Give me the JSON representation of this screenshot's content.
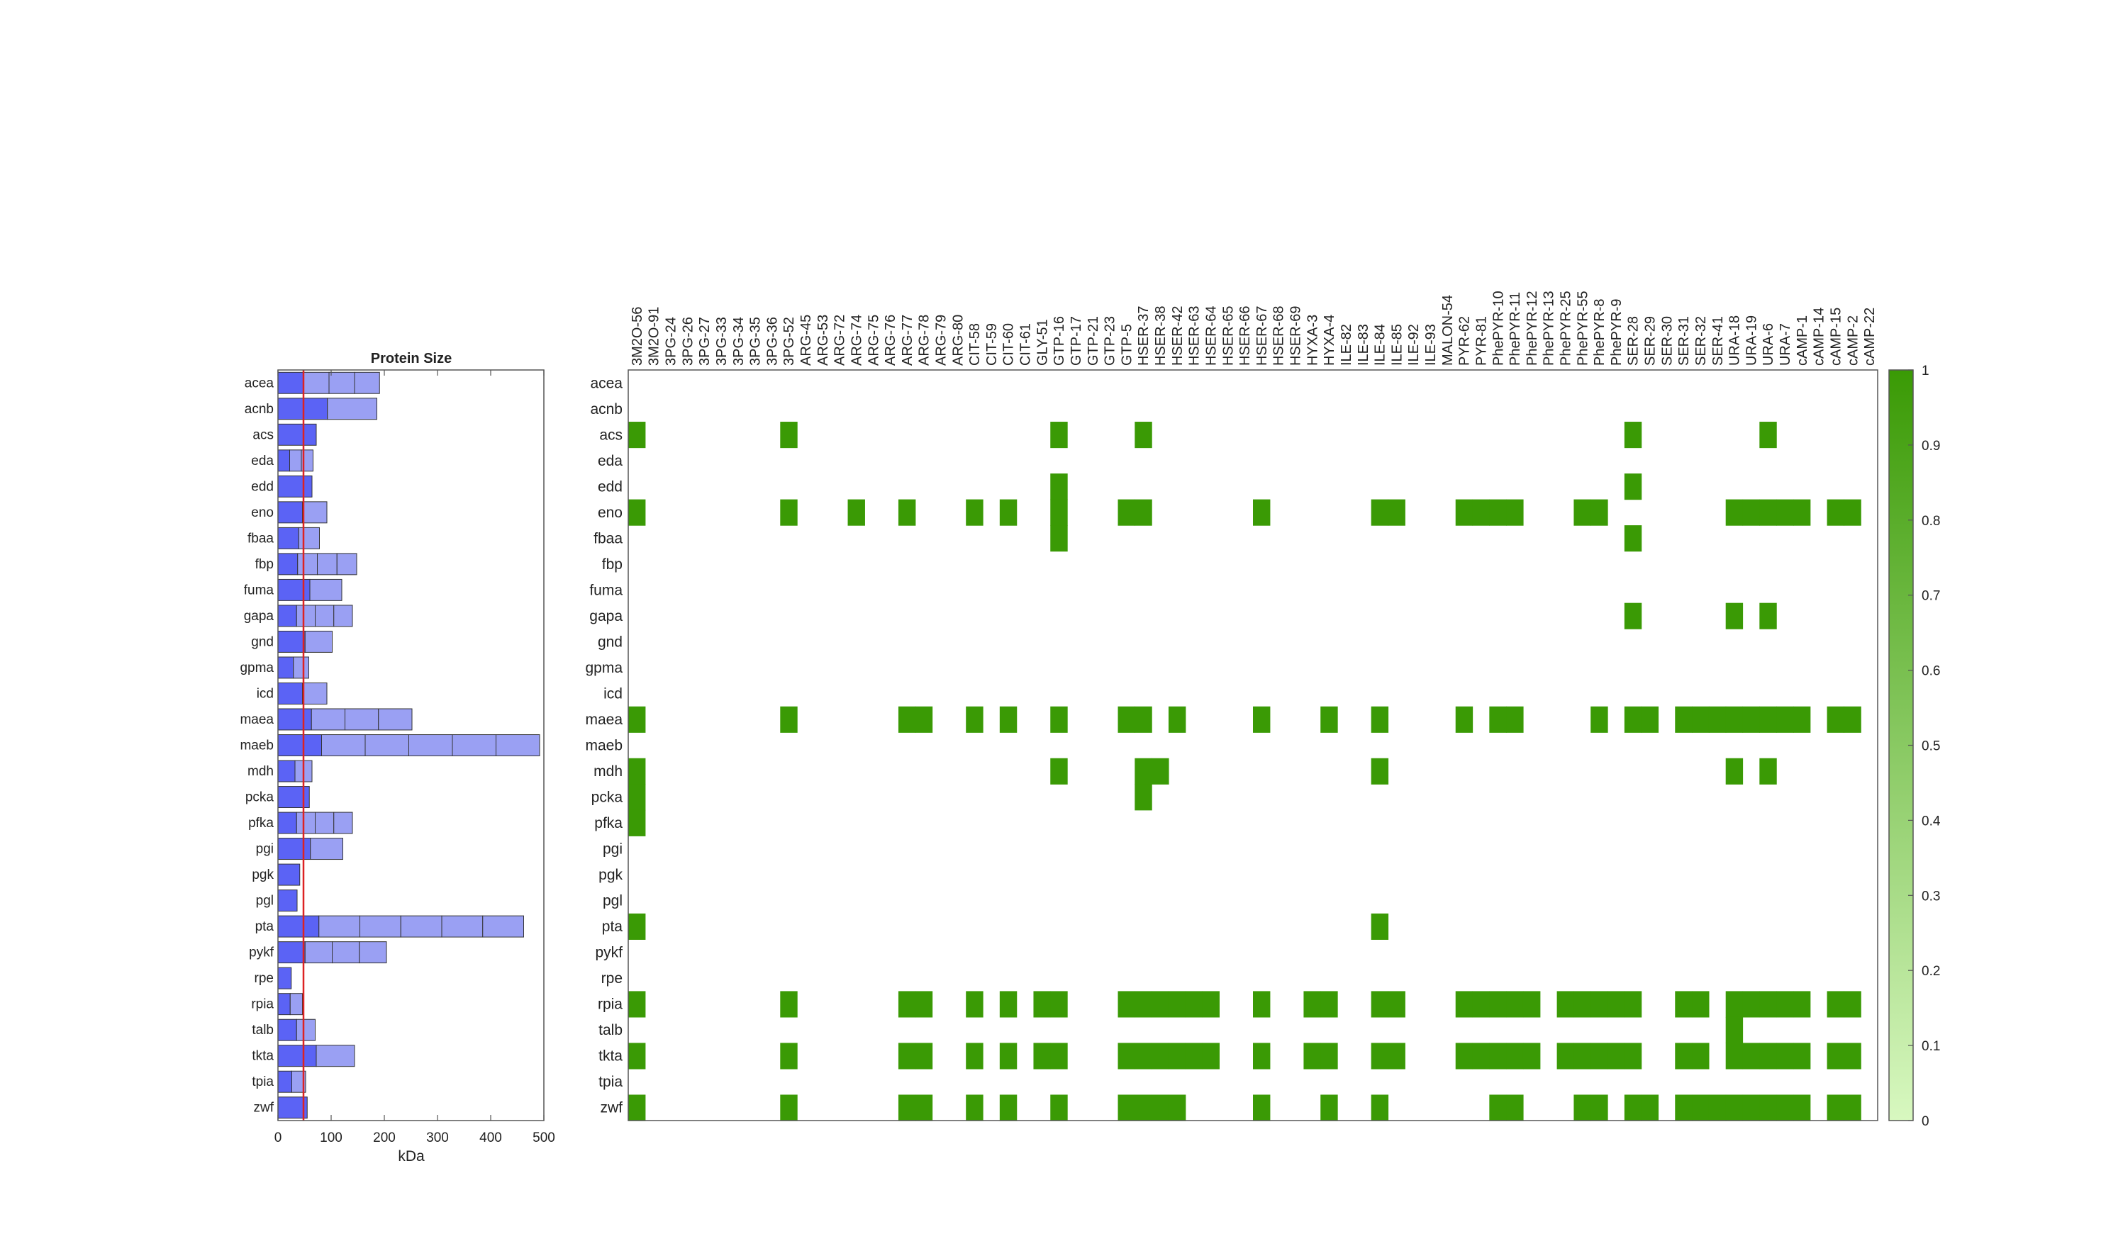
{
  "chart_data": [
    {
      "type": "bar",
      "orientation": "horizontal",
      "stacked": true,
      "title": "Protein Size",
      "xlabel": "kDa",
      "ylabel": "",
      "xlim": [
        0,
        500
      ],
      "xticks": [
        "0",
        "100",
        "200",
        "300",
        "400",
        "500"
      ],
      "reference_line": {
        "x": 48,
        "color": "#dd2222"
      },
      "colors": {
        "primary_segment": "#5b63f5",
        "secondary_segment": "#9aa0f3",
        "edge": "#333333"
      },
      "categories": [
        "acea",
        "acnb",
        "acs",
        "eda",
        "edd",
        "eno",
        "fbaa",
        "fbp",
        "fuma",
        "gapa",
        "gnd",
        "gpma",
        "icd",
        "maea",
        "maeb",
        "mdh",
        "pcka",
        "pfka",
        "pgi",
        "pgk",
        "pgl",
        "pta",
        "pykf",
        "rpe",
        "rpia",
        "talb",
        "tkta",
        "tpia",
        "zwf"
      ],
      "segments": [
        [
          48,
          48,
          48,
          47
        ],
        [
          93,
          93
        ],
        [
          72
        ],
        [
          22,
          22,
          22
        ],
        [
          64
        ],
        [
          46,
          46
        ],
        [
          39,
          39
        ],
        [
          37,
          37,
          37,
          37
        ],
        [
          60,
          60
        ],
        [
          35,
          35,
          35,
          35
        ],
        [
          51,
          51
        ],
        [
          29,
          29
        ],
        [
          46,
          46
        ],
        [
          63,
          63,
          63,
          63
        ],
        [
          82,
          82,
          82,
          82,
          82,
          82
        ],
        [
          32,
          32
        ],
        [
          59
        ],
        [
          35,
          35,
          35,
          35
        ],
        [
          61,
          61
        ],
        [
          41
        ],
        [
          36
        ],
        [
          77,
          77,
          77,
          77,
          77,
          77
        ],
        [
          51,
          51,
          51,
          51
        ],
        [
          25
        ],
        [
          23,
          23
        ],
        [
          35,
          35
        ],
        [
          72,
          72
        ],
        [
          26,
          26
        ],
        [
          55
        ]
      ]
    },
    {
      "type": "heatmap",
      "title": "",
      "rows": [
        "acea",
        "acnb",
        "acs",
        "eda",
        "edd",
        "eno",
        "fbaa",
        "fbp",
        "fuma",
        "gapa",
        "gnd",
        "gpma",
        "icd",
        "maea",
        "maeb",
        "mdh",
        "pcka",
        "pfka",
        "pgi",
        "pgk",
        "pgl",
        "pta",
        "pykf",
        "rpe",
        "rpia",
        "talb",
        "tkta",
        "tpia",
        "zwf"
      ],
      "columns": [
        "3M2O-56",
        "3M2O-91",
        "3PG-24",
        "3PG-26",
        "3PG-27",
        "3PG-33",
        "3PG-34",
        "3PG-35",
        "3PG-36",
        "3PG-52",
        "ARG-45",
        "ARG-53",
        "ARG-72",
        "ARG-74",
        "ARG-75",
        "ARG-76",
        "ARG-77",
        "ARG-78",
        "ARG-79",
        "ARG-80",
        "CIT-58",
        "CIT-59",
        "CIT-60",
        "CIT-61",
        "GLY-51",
        "GTP-16",
        "GTP-17",
        "GTP-21",
        "GTP-23",
        "GTP-5",
        "HSER-37",
        "HSER-38",
        "HSER-42",
        "HSER-63",
        "HSER-64",
        "HSER-65",
        "HSER-66",
        "HSER-67",
        "HSER-68",
        "HSER-69",
        "HYXA-3",
        "HYXA-4",
        "ILE-82",
        "ILE-83",
        "ILE-84",
        "ILE-85",
        "ILE-92",
        "ILE-93",
        "MALON-54",
        "PYR-62",
        "PYR-81",
        "PhePYR-10",
        "PhePYR-11",
        "PhePYR-12",
        "PhePYR-13",
        "PhePYR-25",
        "PhePYR-55",
        "PhePYR-8",
        "PhePYR-9",
        "SER-28",
        "SER-29",
        "SER-30",
        "SER-31",
        "SER-32",
        "SER-41",
        "URA-18",
        "URA-19",
        "URA-6",
        "URA-7",
        "cAMP-1",
        "cAMP-14",
        "cAMP-15",
        "cAMP-2",
        "cAMP-22"
      ],
      "values_on": [
        [],
        [],
        [
          0,
          9,
          25,
          30,
          59,
          67
        ],
        [],
        [
          25,
          59
        ],
        [
          0,
          9,
          13,
          16,
          20,
          22,
          25,
          29,
          30,
          37,
          44,
          45,
          49,
          50,
          51,
          52,
          56,
          57,
          65,
          66,
          67,
          68,
          69,
          71,
          72
        ],
        [
          25,
          59
        ],
        [],
        [],
        [
          59,
          65,
          67
        ],
        [],
        [],
        [],
        [
          0,
          9,
          16,
          17,
          20,
          22,
          25,
          29,
          30,
          32,
          37,
          41,
          44,
          49,
          51,
          52,
          57,
          59,
          60,
          62,
          63,
          64,
          65,
          66,
          67,
          68,
          69,
          71,
          72
        ],
        [],
        [
          0,
          25,
          30,
          31,
          44,
          65,
          67
        ],
        [
          0,
          30
        ],
        [
          0
        ],
        [],
        [],
        [],
        [
          0,
          44
        ],
        [],
        [],
        [
          0,
          9,
          16,
          17,
          20,
          22,
          24,
          25,
          29,
          30,
          31,
          32,
          33,
          34,
          37,
          40,
          41,
          44,
          45,
          49,
          50,
          51,
          52,
          53,
          55,
          56,
          57,
          58,
          59,
          62,
          63,
          65,
          66,
          67,
          68,
          69,
          71,
          72
        ],
        [
          65
        ],
        [
          0,
          9,
          16,
          17,
          20,
          22,
          24,
          25,
          29,
          30,
          31,
          32,
          33,
          34,
          37,
          40,
          41,
          44,
          45,
          49,
          50,
          51,
          52,
          53,
          55,
          56,
          57,
          58,
          59,
          62,
          63,
          65,
          66,
          67,
          68,
          69,
          71,
          72
        ],
        [],
        [
          0,
          9,
          16,
          17,
          20,
          22,
          25,
          29,
          30,
          31,
          32,
          37,
          41,
          44,
          51,
          52,
          56,
          57,
          59,
          60,
          62,
          63,
          64,
          65,
          66,
          67,
          68,
          69,
          71,
          72
        ]
      ],
      "colorbar": {
        "min": 0,
        "max": 1,
        "ticks": [
          "0",
          "0.1",
          "0.2",
          "0.3",
          "0.4",
          "0.5",
          "0.6",
          "0.7",
          "0.8",
          "0.9",
          "1"
        ],
        "color_low": "#d8f8c0",
        "color_high": "#3a9a05"
      }
    }
  ]
}
